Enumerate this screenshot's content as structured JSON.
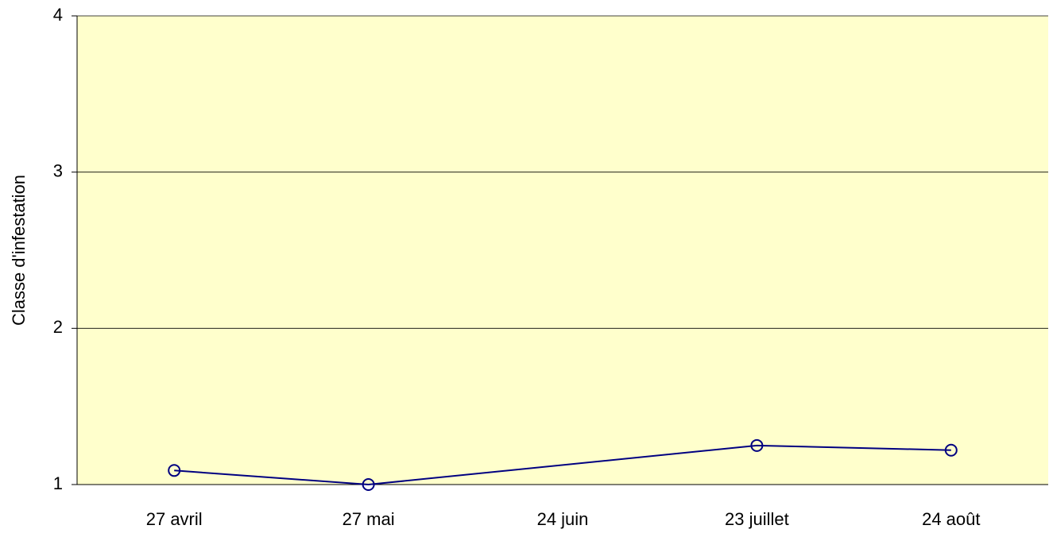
{
  "chart_data": {
    "type": "line",
    "y_label": "Classe d'infestation",
    "categories": [
      "27 avril",
      "27 mai",
      "24 juin",
      "23 juillet",
      "24 août"
    ],
    "series": [
      {
        "color": "#000080",
        "values": [
          1.09,
          1.0,
          null,
          1.25,
          1.22
        ]
      }
    ],
    "connect_gaps": true,
    "ylim": [
      1,
      4
    ],
    "yticks": [
      1,
      2,
      3,
      4
    ],
    "grid": true,
    "plot_background": "#ffffcc"
  }
}
